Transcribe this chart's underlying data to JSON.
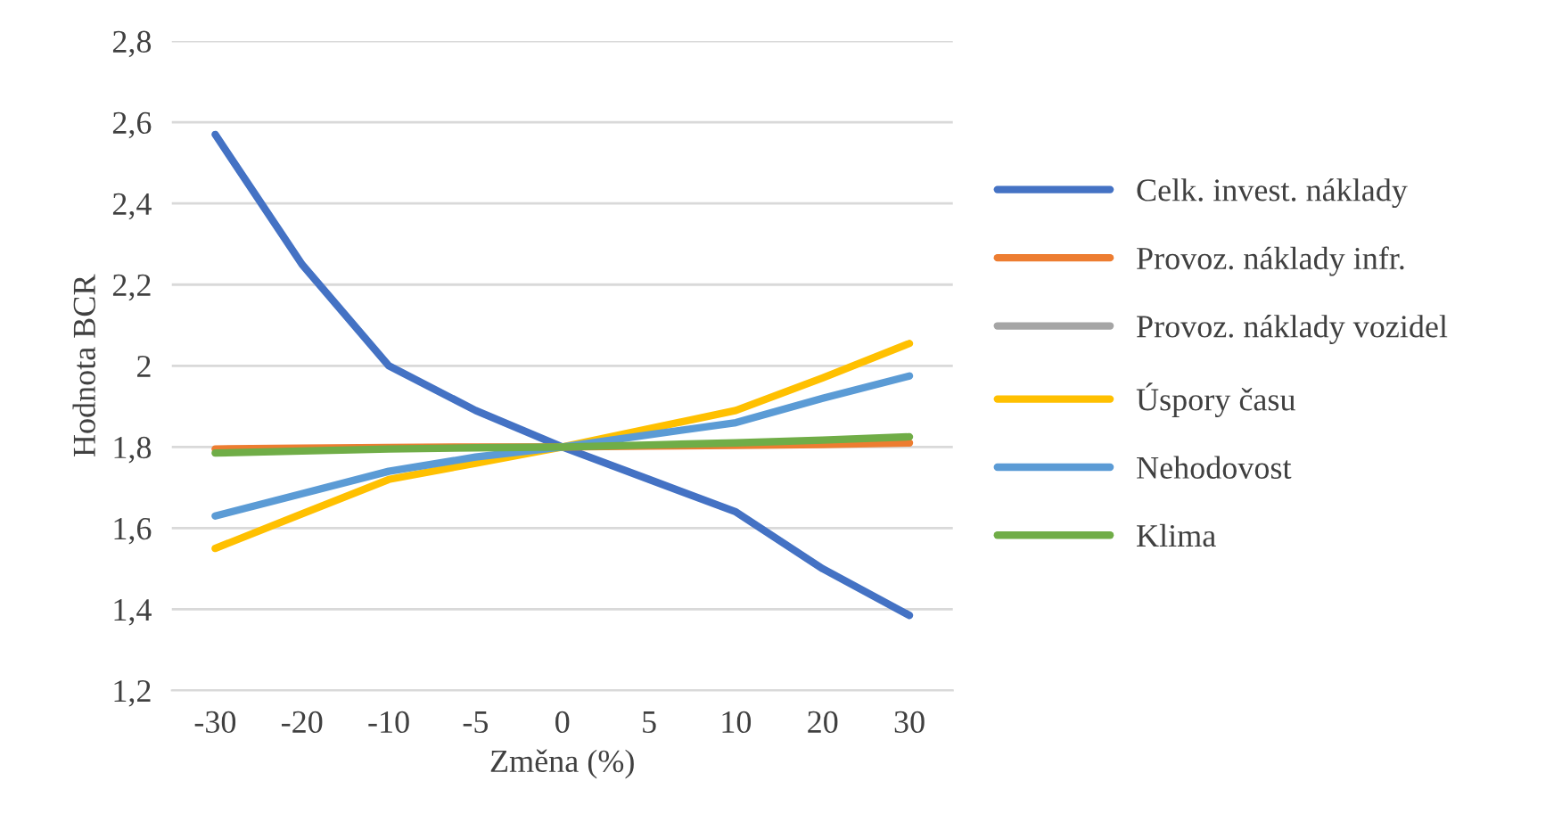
{
  "chart_data": {
    "type": "line",
    "xlabel": "Změna (%)",
    "ylabel": "Hodnota BCR",
    "categories": [
      "-30",
      "-20",
      "-10",
      "-5",
      "0",
      "5",
      "10",
      "20",
      "30"
    ],
    "series": [
      {
        "name": "Celk. invest. náklady",
        "color": "#4472c4",
        "values": [
          2.57,
          2.25,
          2.0,
          1.89,
          1.8,
          1.72,
          1.64,
          1.5,
          1.385
        ]
      },
      {
        "name": "Provoz. náklady infr.",
        "color": "#ed7d31",
        "values": [
          1.795,
          1.797,
          1.799,
          1.8,
          1.8,
          1.802,
          1.804,
          1.806,
          1.81
        ]
      },
      {
        "name": "Provoz. náklady vozidel",
        "color": "#a5a5a5",
        "values": [
          null,
          null,
          null,
          null,
          null,
          null,
          null,
          null,
          null
        ]
      },
      {
        "name": "Úspory času",
        "color": "#ffc000",
        "values": [
          1.55,
          1.635,
          1.72,
          1.76,
          1.8,
          1.845,
          1.89,
          1.97,
          2.055
        ]
      },
      {
        "name": "Nehodovost",
        "color": "#5b9bd5",
        "values": [
          1.63,
          1.685,
          1.74,
          1.775,
          1.8,
          1.83,
          1.86,
          1.92,
          1.975
        ]
      },
      {
        "name": "Klima",
        "color": "#70ad47",
        "values": [
          1.785,
          1.79,
          1.795,
          1.798,
          1.8,
          1.805,
          1.81,
          1.817,
          1.825
        ]
      }
    ],
    "ylim": [
      1.2,
      2.8
    ],
    "yticks": [
      {
        "value": 1.2,
        "label": "1,2"
      },
      {
        "value": 1.4,
        "label": "1,4"
      },
      {
        "value": 1.6,
        "label": "1,6"
      },
      {
        "value": 1.8,
        "label": "1,8"
      },
      {
        "value": 2.0,
        "label": "2"
      },
      {
        "value": 2.2,
        "label": "2,2"
      },
      {
        "value": 2.4,
        "label": "2,4"
      },
      {
        "value": 2.6,
        "label": "2,6"
      },
      {
        "value": 2.8,
        "label": "2,8"
      }
    ],
    "grid": "y",
    "legend": "right",
    "marker": "none",
    "line_style": "solid"
  }
}
